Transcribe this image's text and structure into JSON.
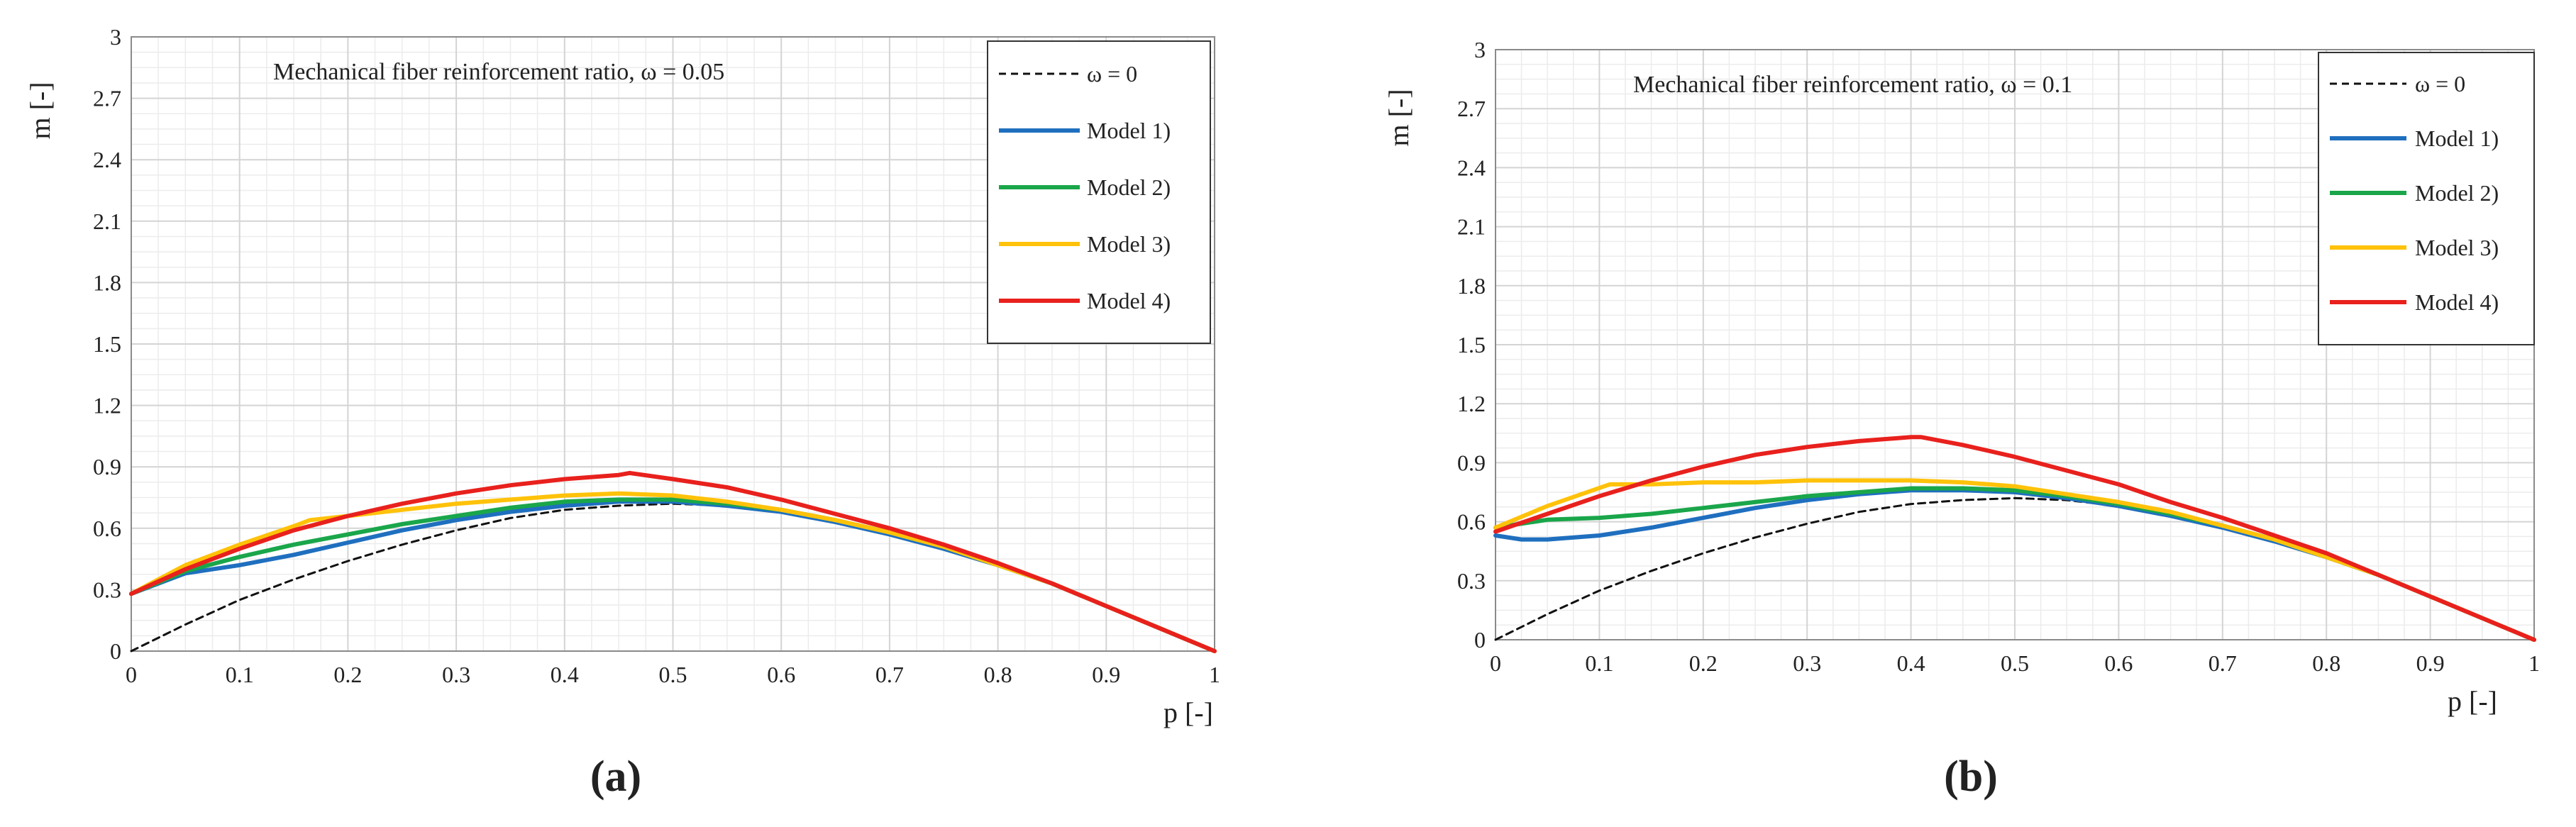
{
  "figure": {
    "panels": [
      "(a)",
      "(b)"
    ]
  },
  "colors": {
    "omega0": "#111111",
    "model1": "#1f6fbf",
    "model2": "#1aa64a",
    "model3": "#ffc20a",
    "model4": "#e8211d",
    "grid_major": "#d4d4d4",
    "grid_minor": "#ececec",
    "axis": "#8a8a8a"
  },
  "chart_data": [
    {
      "type": "line",
      "panel_label": "(a)",
      "title": "Mechanical fiber reinforcement ratio, ω = 0.05",
      "xlabel": "p [-]",
      "ylabel": "m [-]",
      "xlim": [
        0,
        1
      ],
      "ylim": [
        0,
        3
      ],
      "x_ticks": [
        "0",
        "0.1",
        "0.2",
        "0.3",
        "0.4",
        "0.5",
        "0.6",
        "0.7",
        "0.8",
        "0.9",
        "1"
      ],
      "y_ticks": [
        "0",
        "0.3",
        "0.6",
        "0.9",
        "1.2",
        "1.5",
        "1.8",
        "2.1",
        "2.4",
        "2.7",
        "3"
      ],
      "grid": true,
      "legend_position": "top-right",
      "series": [
        {
          "name": "ω = 0",
          "color_key": "omega0",
          "dashed": true,
          "x": [
            0,
            0.05,
            0.1,
            0.15,
            0.2,
            0.25,
            0.3,
            0.35,
            0.4,
            0.45,
            0.5,
            0.55,
            0.6,
            0.65,
            0.7,
            0.75,
            0.8,
            0.85,
            0.9,
            0.95,
            1.0
          ],
          "y": [
            0,
            0.13,
            0.25,
            0.35,
            0.44,
            0.52,
            0.59,
            0.65,
            0.69,
            0.71,
            0.72,
            0.71,
            0.68,
            0.63,
            0.57,
            0.5,
            0.42,
            0.33,
            0.22,
            0.11,
            0
          ]
        },
        {
          "name": "Model 1)",
          "color_key": "model1",
          "dashed": false,
          "x": [
            0,
            0.05,
            0.1,
            0.15,
            0.2,
            0.25,
            0.3,
            0.35,
            0.4,
            0.45,
            0.5,
            0.55,
            0.6,
            0.65,
            0.7,
            0.75,
            0.8,
            0.85,
            0.9,
            0.95,
            1.0
          ],
          "y": [
            0.28,
            0.38,
            0.42,
            0.47,
            0.53,
            0.59,
            0.64,
            0.68,
            0.71,
            0.73,
            0.73,
            0.71,
            0.68,
            0.63,
            0.57,
            0.5,
            0.42,
            0.33,
            0.22,
            0.11,
            0
          ]
        },
        {
          "name": "Model 2)",
          "color_key": "model2",
          "dashed": false,
          "x": [
            0,
            0.05,
            0.1,
            0.15,
            0.2,
            0.25,
            0.3,
            0.35,
            0.4,
            0.45,
            0.5,
            0.55,
            0.6,
            0.65,
            0.7,
            0.75,
            0.8,
            0.85,
            0.9,
            0.95,
            1.0
          ],
          "y": [
            0.28,
            0.39,
            0.46,
            0.52,
            0.57,
            0.62,
            0.66,
            0.7,
            0.73,
            0.74,
            0.74,
            0.72,
            0.69,
            0.64,
            0.58,
            0.51,
            0.42,
            0.33,
            0.22,
            0.11,
            0
          ]
        },
        {
          "name": "Model 3)",
          "color_key": "model3",
          "dashed": false,
          "x": [
            0,
            0.05,
            0.1,
            0.15,
            0.165,
            0.2,
            0.25,
            0.3,
            0.35,
            0.4,
            0.45,
            0.5,
            0.55,
            0.6,
            0.65,
            0.7,
            0.75,
            0.8,
            0.85,
            0.9,
            0.95,
            1.0
          ],
          "y": [
            0.28,
            0.42,
            0.52,
            0.61,
            0.64,
            0.66,
            0.69,
            0.72,
            0.74,
            0.76,
            0.77,
            0.76,
            0.73,
            0.69,
            0.64,
            0.58,
            0.51,
            0.42,
            0.33,
            0.22,
            0.11,
            0
          ]
        },
        {
          "name": "Model 4)",
          "color_key": "model4",
          "dashed": false,
          "x": [
            0,
            0.05,
            0.1,
            0.15,
            0.2,
            0.25,
            0.3,
            0.35,
            0.4,
            0.45,
            0.46,
            0.5,
            0.55,
            0.6,
            0.65,
            0.7,
            0.75,
            0.8,
            0.85,
            0.9,
            0.95,
            1.0
          ],
          "y": [
            0.28,
            0.4,
            0.5,
            0.59,
            0.66,
            0.72,
            0.77,
            0.81,
            0.84,
            0.86,
            0.87,
            0.84,
            0.8,
            0.74,
            0.67,
            0.6,
            0.52,
            0.43,
            0.33,
            0.22,
            0.11,
            0
          ]
        }
      ]
    },
    {
      "type": "line",
      "panel_label": "(b)",
      "title": "Mechanical fiber reinforcement ratio, ω = 0.1",
      "xlabel": "p [-]",
      "ylabel": "m [-]",
      "xlim": [
        0,
        1
      ],
      "ylim": [
        0,
        3
      ],
      "x_ticks": [
        "0",
        "0.1",
        "0.2",
        "0.3",
        "0.4",
        "0.5",
        "0.6",
        "0.7",
        "0.8",
        "0.9",
        "1"
      ],
      "y_ticks": [
        "0",
        "0.3",
        "0.6",
        "0.9",
        "1.2",
        "1.5",
        "1.8",
        "2.1",
        "2.4",
        "2.7",
        "3"
      ],
      "grid": true,
      "legend_position": "top-right",
      "series": [
        {
          "name": "ω = 0",
          "color_key": "omega0",
          "dashed": true,
          "x": [
            0,
            0.05,
            0.1,
            0.15,
            0.2,
            0.25,
            0.3,
            0.35,
            0.4,
            0.45,
            0.5,
            0.55,
            0.6,
            0.65,
            0.7,
            0.75,
            0.8,
            0.85,
            0.9,
            0.95,
            1.0
          ],
          "y": [
            0,
            0.13,
            0.25,
            0.35,
            0.44,
            0.52,
            0.59,
            0.65,
            0.69,
            0.71,
            0.72,
            0.71,
            0.68,
            0.63,
            0.57,
            0.5,
            0.42,
            0.33,
            0.22,
            0.11,
            0
          ]
        },
        {
          "name": "Model 1)",
          "color_key": "model1",
          "dashed": false,
          "x": [
            0,
            0.025,
            0.05,
            0.1,
            0.15,
            0.2,
            0.25,
            0.3,
            0.35,
            0.4,
            0.45,
            0.5,
            0.55,
            0.6,
            0.65,
            0.7,
            0.75,
            0.8,
            0.85,
            0.9,
            0.95,
            1.0
          ],
          "y": [
            0.53,
            0.51,
            0.51,
            0.53,
            0.57,
            0.62,
            0.67,
            0.71,
            0.74,
            0.76,
            0.76,
            0.75,
            0.72,
            0.68,
            0.63,
            0.57,
            0.5,
            0.42,
            0.33,
            0.22,
            0.11,
            0
          ]
        },
        {
          "name": "Model 2)",
          "color_key": "model2",
          "dashed": false,
          "x": [
            0,
            0.05,
            0.1,
            0.15,
            0.2,
            0.25,
            0.3,
            0.35,
            0.4,
            0.45,
            0.5,
            0.55,
            0.6,
            0.65,
            0.7,
            0.75,
            0.8,
            0.85,
            0.9,
            0.95,
            1.0
          ],
          "y": [
            0.57,
            0.61,
            0.62,
            0.64,
            0.67,
            0.7,
            0.73,
            0.75,
            0.77,
            0.77,
            0.76,
            0.73,
            0.69,
            0.64,
            0.58,
            0.51,
            0.42,
            0.33,
            0.22,
            0.11,
            0
          ]
        },
        {
          "name": "Model 3)",
          "color_key": "model3",
          "dashed": false,
          "x": [
            0,
            0.05,
            0.11,
            0.15,
            0.2,
            0.25,
            0.3,
            0.35,
            0.4,
            0.45,
            0.5,
            0.55,
            0.6,
            0.65,
            0.7,
            0.75,
            0.8,
            0.85,
            0.9,
            0.95,
            1.0
          ],
          "y": [
            0.57,
            0.68,
            0.79,
            0.79,
            0.8,
            0.8,
            0.81,
            0.81,
            0.81,
            0.8,
            0.78,
            0.74,
            0.7,
            0.65,
            0.58,
            0.51,
            0.42,
            0.33,
            0.22,
            0.11,
            0
          ]
        },
        {
          "name": "Model 4)",
          "color_key": "model4",
          "dashed": false,
          "x": [
            0,
            0.05,
            0.1,
            0.15,
            0.2,
            0.25,
            0.3,
            0.35,
            0.4,
            0.41,
            0.45,
            0.5,
            0.55,
            0.6,
            0.65,
            0.7,
            0.75,
            0.8,
            0.85,
            0.9,
            0.95,
            1.0
          ],
          "y": [
            0.55,
            0.64,
            0.73,
            0.81,
            0.88,
            0.94,
            0.98,
            1.01,
            1.03,
            1.03,
            0.99,
            0.93,
            0.86,
            0.79,
            0.7,
            0.62,
            0.53,
            0.44,
            0.33,
            0.22,
            0.11,
            0
          ]
        }
      ]
    }
  ]
}
